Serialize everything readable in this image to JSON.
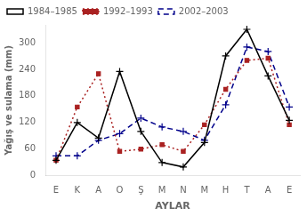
{
  "chart_data": {
    "type": "line",
    "categories": [
      "E",
      "K",
      "A",
      "O",
      "Ş",
      "M",
      "N",
      "M",
      "H",
      "T",
      "A",
      "E"
    ],
    "series": [
      {
        "name": "1984–1985",
        "color": "black",
        "marker": "+",
        "line_style": "solid",
        "values": [
          35,
          120,
          85,
          235,
          100,
          30,
          20,
          75,
          270,
          330,
          225,
          125
        ]
      },
      {
        "name": "1992–1993",
        "color": "#aa2222",
        "marker": "s",
        "line_style": "dotted",
        "values": [
          35,
          155,
          230,
          55,
          60,
          70,
          55,
          115,
          195,
          260,
          265,
          115
        ]
      },
      {
        "name": "2002–2003",
        "color": "#00008B",
        "marker": "+",
        "line_style": "dashed",
        "values": [
          45,
          45,
          80,
          95,
          130,
          110,
          100,
          80,
          160,
          290,
          280,
          155
        ]
      }
    ],
    "xlabel": "AYLAR",
    "ylabel": "Yağış ve sulama (mm)",
    "ylim": [
      0,
      340
    ],
    "yticks": [
      0,
      60,
      120,
      180,
      240,
      300
    ],
    "grid": false,
    "legend": "upper left"
  }
}
